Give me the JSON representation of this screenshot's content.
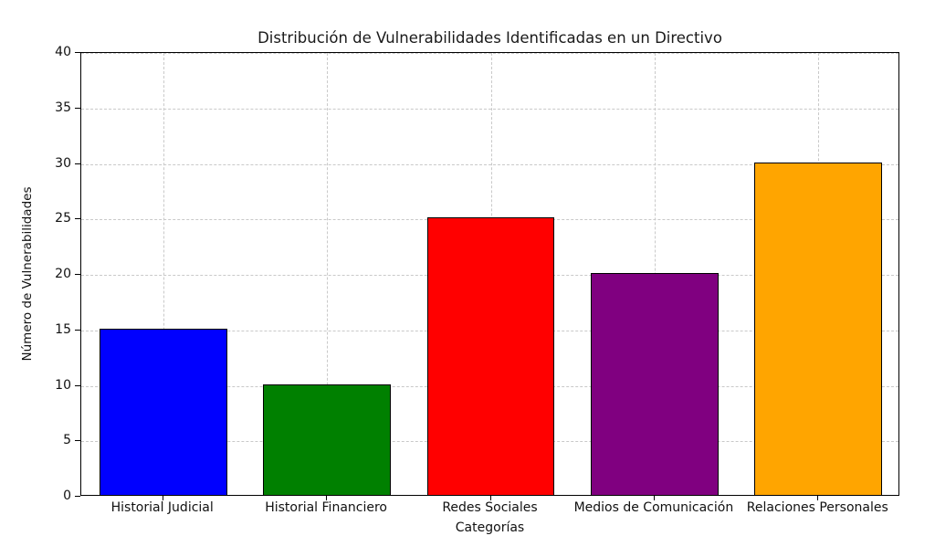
{
  "chart_data": {
    "type": "bar",
    "title": "Distribución de Vulnerabilidades Identificadas en un Directivo",
    "xlabel": "Categorías",
    "ylabel": "Número de Vulnerabilidades",
    "categories": [
      "Historial Judicial",
      "Historial Financiero",
      "Redes Sociales",
      "Medios de Comunicación",
      "Relaciones Personales"
    ],
    "values": [
      15,
      10,
      25,
      20,
      30
    ],
    "bar_colors": [
      "#0000ff",
      "#008000",
      "#ff0000",
      "#800080",
      "#ffa500"
    ],
    "bar_edge_color": "#000000",
    "ylim": [
      0,
      40
    ],
    "yticks": [
      0,
      5,
      10,
      15,
      20,
      25,
      30,
      35,
      40
    ],
    "grid": "on",
    "grid_style": "dashed",
    "legend": "none"
  }
}
